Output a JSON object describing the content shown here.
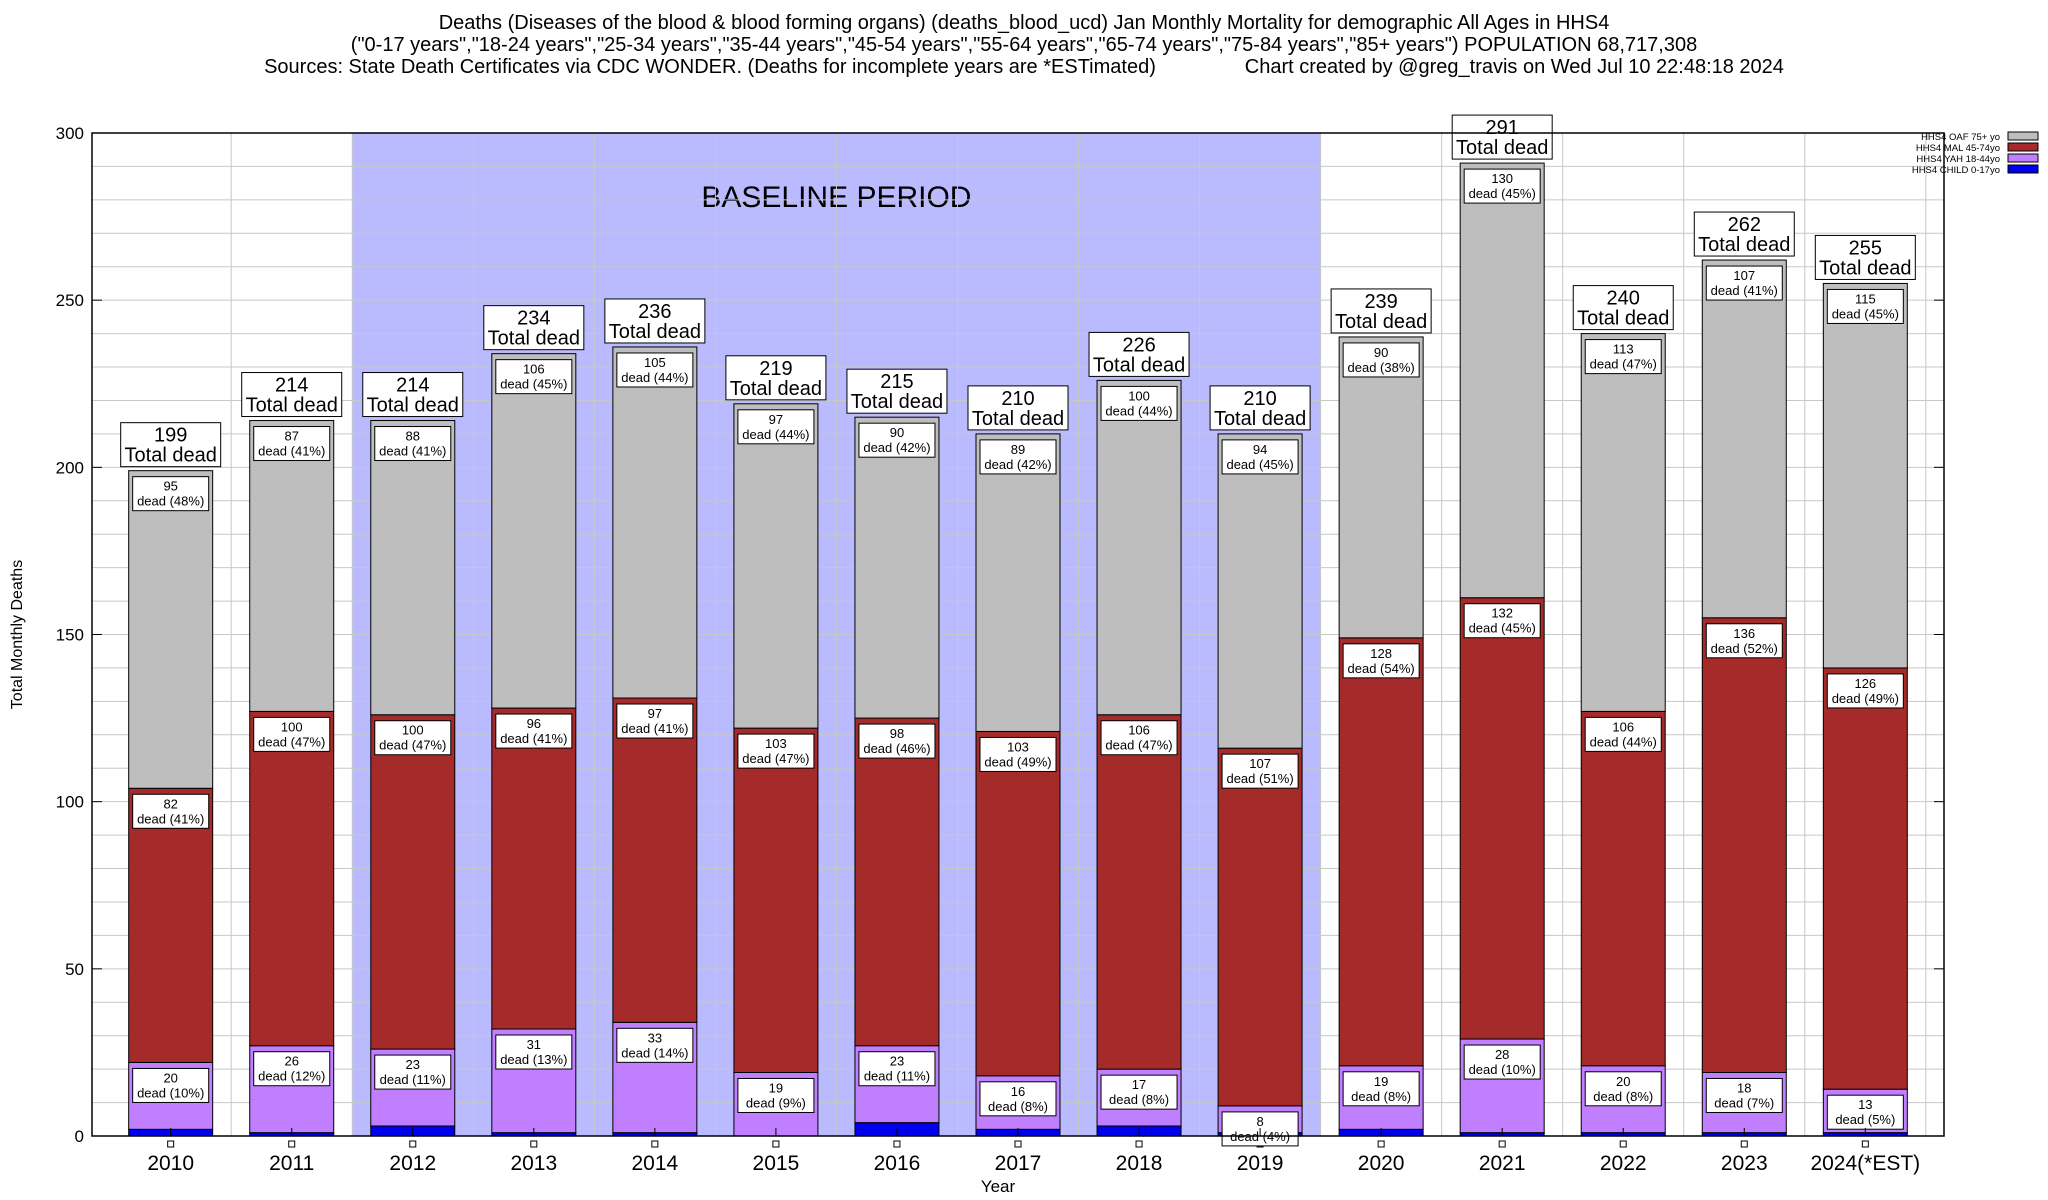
{
  "title": {
    "line1": "Deaths (Diseases of the blood & blood forming organs) (deaths_blood_ucd) Jan Monthly Mortality for demographic All Ages in HHS4",
    "line2": "(\"0-17 years\",\"18-24 years\",\"25-34 years\",\"35-44 years\",\"45-54 years\",\"55-64 years\",\"65-74 years\",\"75-84 years\",\"85+ years\") POPULATION 68,717,308",
    "line3": "Sources: State Death Certificates via CDC WONDER. (Deaths for incomplete years are *ESTimated)                Chart created by @greg_travis on Wed Jul 10 22:48:18 2024"
  },
  "baseline_label": "BASELINE PERIOD",
  "total_label": "Total dead",
  "dead_word": "dead",
  "colors": {
    "child": "#0000ee",
    "yah": "#bf7fff",
    "mal": "#a52a2a",
    "oaf": "#bebebe",
    "baseline": "#babaff"
  },
  "chart_data": {
    "type": "bar",
    "stacked": true,
    "xlabel": "Year",
    "ylabel": "Total Monthly Deaths",
    "ylim": [
      0,
      300
    ],
    "yticks": [
      0,
      50,
      100,
      150,
      200,
      250,
      300
    ],
    "grid": true,
    "legend_position": "top-right",
    "baseline_period": [
      "2012",
      "2019"
    ],
    "categories": [
      "2010",
      "2011",
      "2012",
      "2013",
      "2014",
      "2015",
      "2016",
      "2017",
      "2018",
      "2019",
      "2020",
      "2021",
      "2022",
      "2023",
      "2024(*EST)"
    ],
    "totals": [
      199,
      214,
      214,
      234,
      236,
      219,
      215,
      210,
      226,
      210,
      239,
      291,
      240,
      262,
      255
    ],
    "series": [
      {
        "name": "HHS4 CHILD 0-17yo",
        "key": "child",
        "values": [
          2,
          1,
          3,
          1,
          1,
          0,
          4,
          2,
          3,
          1,
          2,
          1,
          1,
          1,
          1
        ],
        "percents": [
          null,
          null,
          null,
          null,
          null,
          null,
          null,
          null,
          null,
          null,
          null,
          null,
          null,
          null,
          null
        ]
      },
      {
        "name": "HHS4 YAH 18-44yo",
        "key": "yah",
        "values": [
          20,
          26,
          23,
          31,
          33,
          19,
          23,
          16,
          17,
          8,
          19,
          28,
          20,
          18,
          13
        ],
        "percents": [
          "10%",
          "12%",
          "11%",
          "13%",
          "14%",
          "9%",
          "11%",
          "8%",
          "8%",
          "4%",
          "8%",
          "10%",
          "8%",
          "7%",
          "5%"
        ]
      },
      {
        "name": "HHS4 MAL 45-74yo",
        "key": "mal",
        "values": [
          82,
          100,
          100,
          96,
          97,
          103,
          98,
          103,
          106,
          107,
          128,
          132,
          106,
          136,
          126
        ],
        "percents": [
          "41%",
          "47%",
          "47%",
          "41%",
          "41%",
          "47%",
          "46%",
          "49%",
          "47%",
          "51%",
          "54%",
          "45%",
          "44%",
          "52%",
          "49%"
        ]
      },
      {
        "name": "HHS4 OAF 75+ yo",
        "key": "oaf",
        "values": [
          95,
          87,
          88,
          106,
          105,
          97,
          90,
          89,
          100,
          94,
          90,
          130,
          113,
          107,
          115
        ],
        "percents": [
          "48%",
          "41%",
          "41%",
          "45%",
          "44%",
          "44%",
          "42%",
          "42%",
          "44%",
          "45%",
          "38%",
          "45%",
          "47%",
          "41%",
          "45%"
        ]
      }
    ],
    "legend_order": [
      "oaf",
      "mal",
      "yah",
      "child"
    ]
  }
}
